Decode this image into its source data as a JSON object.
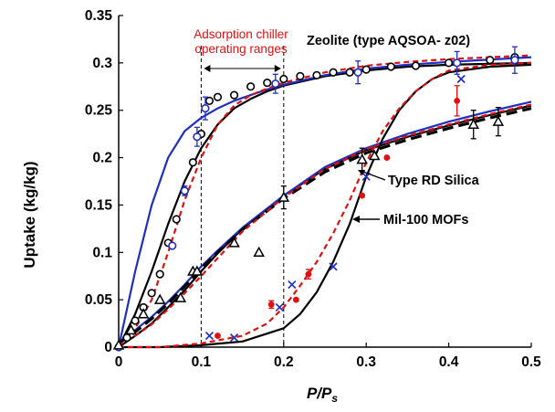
{
  "chart_data": {
    "type": "scatter",
    "xlim": [
      0,
      0.5
    ],
    "ylim": [
      0,
      0.35
    ],
    "xticks": [
      "0",
      "0.1",
      "0.2",
      "0.3",
      "0.4",
      "0.5"
    ],
    "yticks": [
      "0",
      "0.05",
      "0.1",
      "0.15",
      "0.2",
      "0.25",
      "0.3",
      "0.35"
    ],
    "xlabel": {
      "main": "P/P",
      "sub": "s"
    },
    "ylabel": "Uptake (kg/kg)",
    "grid": false,
    "colors": {
      "black": "#000000",
      "blue": "#1f2fbf",
      "red": "#e01010"
    },
    "annotations": {
      "range_title": [
        "Adsorption chiller",
        "operating ranges"
      ],
      "zeolite": "Zeolite (type AQSOA- z02)",
      "silica": "Type RD Silica",
      "mof": "Mil-100 MOFs"
    },
    "operating_range": [
      0.1,
      0.2
    ],
    "series": [
      {
        "group": "zeolite",
        "style": "solid",
        "color": "black",
        "points": [
          [
            0,
            0
          ],
          [
            0.02,
            0.035
          ],
          [
            0.04,
            0.08
          ],
          [
            0.06,
            0.13
          ],
          [
            0.08,
            0.175
          ],
          [
            0.1,
            0.21
          ],
          [
            0.12,
            0.235
          ],
          [
            0.14,
            0.252
          ],
          [
            0.16,
            0.262
          ],
          [
            0.18,
            0.27
          ],
          [
            0.2,
            0.276
          ],
          [
            0.25,
            0.286
          ],
          [
            0.3,
            0.292
          ],
          [
            0.35,
            0.296
          ],
          [
            0.4,
            0.298
          ],
          [
            0.5,
            0.3
          ]
        ]
      },
      {
        "group": "zeolite",
        "style": "solid",
        "color": "blue",
        "points": [
          [
            0,
            0
          ],
          [
            0.02,
            0.08
          ],
          [
            0.04,
            0.15
          ],
          [
            0.06,
            0.2
          ],
          [
            0.08,
            0.228
          ],
          [
            0.1,
            0.242
          ],
          [
            0.12,
            0.252
          ],
          [
            0.14,
            0.26
          ],
          [
            0.16,
            0.266
          ],
          [
            0.18,
            0.272
          ],
          [
            0.2,
            0.277
          ],
          [
            0.25,
            0.287
          ],
          [
            0.3,
            0.294
          ],
          [
            0.35,
            0.298
          ],
          [
            0.4,
            0.301
          ],
          [
            0.5,
            0.306
          ]
        ]
      },
      {
        "group": "zeolite",
        "style": "dashed",
        "color": "red",
        "points": [
          [
            0,
            0
          ],
          [
            0.02,
            0.02
          ],
          [
            0.04,
            0.05
          ],
          [
            0.06,
            0.1
          ],
          [
            0.08,
            0.155
          ],
          [
            0.1,
            0.2
          ],
          [
            0.12,
            0.235
          ],
          [
            0.14,
            0.255
          ],
          [
            0.16,
            0.266
          ],
          [
            0.18,
            0.273
          ],
          [
            0.2,
            0.279
          ],
          [
            0.25,
            0.29
          ],
          [
            0.3,
            0.297
          ],
          [
            0.35,
            0.301
          ],
          [
            0.4,
            0.304
          ],
          [
            0.5,
            0.308
          ]
        ]
      },
      {
        "group": "silica",
        "style": "solid",
        "color": "black",
        "points": [
          [
            0,
            0
          ],
          [
            0.02,
            0.012
          ],
          [
            0.04,
            0.025
          ],
          [
            0.06,
            0.042
          ],
          [
            0.08,
            0.06
          ],
          [
            0.1,
            0.08
          ],
          [
            0.12,
            0.099
          ],
          [
            0.15,
            0.125
          ],
          [
            0.2,
            0.16
          ],
          [
            0.25,
            0.188
          ],
          [
            0.3,
            0.208
          ],
          [
            0.35,
            0.222
          ],
          [
            0.4,
            0.234
          ],
          [
            0.45,
            0.245
          ],
          [
            0.5,
            0.255
          ]
        ]
      },
      {
        "group": "silica",
        "style": "solid",
        "color": "blue",
        "points": [
          [
            0,
            0.005
          ],
          [
            0.02,
            0.018
          ],
          [
            0.04,
            0.032
          ],
          [
            0.06,
            0.048
          ],
          [
            0.08,
            0.066
          ],
          [
            0.1,
            0.085
          ],
          [
            0.12,
            0.102
          ],
          [
            0.15,
            0.126
          ],
          [
            0.2,
            0.16
          ],
          [
            0.25,
            0.19
          ],
          [
            0.3,
            0.21
          ],
          [
            0.35,
            0.225
          ],
          [
            0.4,
            0.238
          ],
          [
            0.45,
            0.249
          ],
          [
            0.5,
            0.259
          ]
        ]
      },
      {
        "group": "silica",
        "style": "dashed",
        "color": "black",
        "width": 3.2,
        "points": [
          [
            0,
            0.004
          ],
          [
            0.02,
            0.016
          ],
          [
            0.04,
            0.03
          ],
          [
            0.06,
            0.046
          ],
          [
            0.08,
            0.064
          ],
          [
            0.1,
            0.083
          ],
          [
            0.12,
            0.1
          ],
          [
            0.15,
            0.124
          ],
          [
            0.2,
            0.157
          ],
          [
            0.25,
            0.185
          ],
          [
            0.3,
            0.205
          ],
          [
            0.35,
            0.219
          ],
          [
            0.4,
            0.231
          ],
          [
            0.45,
            0.242
          ],
          [
            0.5,
            0.252
          ]
        ]
      },
      {
        "group": "silica",
        "style": "dashed",
        "color": "red",
        "points": [
          [
            0,
            0.002
          ],
          [
            0.02,
            0.012
          ],
          [
            0.04,
            0.024
          ],
          [
            0.06,
            0.04
          ],
          [
            0.08,
            0.057
          ],
          [
            0.1,
            0.075
          ],
          [
            0.12,
            0.094
          ],
          [
            0.15,
            0.122
          ],
          [
            0.2,
            0.158
          ],
          [
            0.25,
            0.188
          ],
          [
            0.3,
            0.209
          ],
          [
            0.35,
            0.223
          ],
          [
            0.4,
            0.235
          ],
          [
            0.45,
            0.246
          ],
          [
            0.5,
            0.256
          ]
        ]
      },
      {
        "group": "mof",
        "style": "solid",
        "color": "black",
        "points": [
          [
            0,
            0
          ],
          [
            0.05,
            0
          ],
          [
            0.1,
            0.002
          ],
          [
            0.15,
            0.006
          ],
          [
            0.2,
            0.02
          ],
          [
            0.22,
            0.035
          ],
          [
            0.24,
            0.058
          ],
          [
            0.26,
            0.09
          ],
          [
            0.28,
            0.13
          ],
          [
            0.3,
            0.18
          ],
          [
            0.32,
            0.22
          ],
          [
            0.34,
            0.25
          ],
          [
            0.36,
            0.27
          ],
          [
            0.38,
            0.283
          ],
          [
            0.4,
            0.29
          ],
          [
            0.45,
            0.296
          ],
          [
            0.5,
            0.298
          ]
        ]
      },
      {
        "group": "mof",
        "style": "dashed",
        "color": "red",
        "points": [
          [
            0,
            0
          ],
          [
            0.05,
            0
          ],
          [
            0.1,
            0.004
          ],
          [
            0.15,
            0.012
          ],
          [
            0.18,
            0.025
          ],
          [
            0.2,
            0.042
          ],
          [
            0.22,
            0.065
          ],
          [
            0.24,
            0.09
          ],
          [
            0.26,
            0.12
          ],
          [
            0.28,
            0.155
          ],
          [
            0.3,
            0.195
          ],
          [
            0.32,
            0.228
          ],
          [
            0.34,
            0.252
          ],
          [
            0.36,
            0.27
          ],
          [
            0.38,
            0.283
          ],
          [
            0.4,
            0.292
          ],
          [
            0.45,
            0.298
          ],
          [
            0.5,
            0.3
          ]
        ]
      }
    ],
    "markers": [
      {
        "group": "zeolite",
        "shape": "circle-open",
        "color": "black",
        "points": [
          [
            0.01,
            0.01
          ],
          [
            0.02,
            0.028
          ],
          [
            0.03,
            0.042
          ],
          [
            0.04,
            0.057
          ],
          [
            0.05,
            0.077
          ],
          [
            0.06,
            0.11
          ],
          [
            0.07,
            0.135
          ],
          [
            0.08,
            0.165
          ],
          [
            0.09,
            0.195
          ],
          [
            0.1,
            0.225
          ],
          [
            0.11,
            0.26
          ],
          [
            0.12,
            0.264
          ],
          [
            0.14,
            0.266
          ],
          [
            0.16,
            0.275
          ],
          [
            0.18,
            0.279
          ],
          [
            0.2,
            0.283
          ],
          [
            0.22,
            0.286
          ],
          [
            0.24,
            0.287
          ],
          [
            0.26,
            0.29
          ],
          [
            0.28,
            0.29
          ],
          [
            0.3,
            0.293
          ],
          [
            0.33,
            0.296
          ],
          [
            0.36,
            0.297
          ],
          [
            0.4,
            0.3
          ],
          [
            0.45,
            0.303
          ],
          [
            0.48,
            0.306
          ]
        ]
      },
      {
        "group": "zeolite",
        "shape": "circle-open",
        "color": "blue",
        "errorbar": true,
        "points": [
          [
            0,
            0
          ],
          [
            0.065,
            0.107
          ],
          [
            0.08,
            0.165
          ],
          [
            0.095,
            0.222
          ],
          [
            0.105,
            0.252
          ],
          [
            0.19,
            0.278
          ],
          [
            0.29,
            0.29
          ],
          [
            0.41,
            0.3
          ],
          [
            0.48,
            0.303
          ]
        ],
        "errors": [
          0,
          0,
          0.005,
          0.01,
          0.012,
          0.01,
          0.012,
          0.012,
          0.014
        ]
      },
      {
        "group": "silica",
        "shape": "triangle-open",
        "color": "black",
        "errorbar": true,
        "points": [
          [
            0,
            0.002
          ],
          [
            0.015,
            0.018
          ],
          [
            0.03,
            0.035
          ],
          [
            0.05,
            0.05
          ],
          [
            0.075,
            0.052
          ],
          [
            0.09,
            0.08
          ],
          [
            0.095,
            0.08
          ],
          [
            0.14,
            0.11
          ],
          [
            0.17,
            0.1
          ],
          [
            0.2,
            0.158
          ],
          [
            0.295,
            0.198
          ],
          [
            0.31,
            0.202
          ],
          [
            0.43,
            0.235
          ],
          [
            0.46,
            0.238
          ]
        ],
        "errors": [
          0,
          0,
          0,
          0,
          0,
          0,
          0,
          0,
          0,
          0.012,
          0.012,
          0,
          0.015,
          0.015
        ]
      },
      {
        "group": "mof",
        "shape": "cross",
        "color": "blue",
        "points": [
          [
            0.11,
            0.012
          ],
          [
            0.14,
            0.01
          ],
          [
            0.195,
            0.042
          ],
          [
            0.21,
            0.066
          ],
          [
            0.26,
            0.085
          ],
          [
            0.3,
            0.18
          ],
          [
            0.415,
            0.283
          ]
        ]
      },
      {
        "group": "mof",
        "shape": "dot",
        "color": "red",
        "errorbar": true,
        "points": [
          [
            0.12,
            0.012
          ],
          [
            0.185,
            0.045
          ],
          [
            0.215,
            0.05
          ],
          [
            0.23,
            0.077
          ],
          [
            0.295,
            0.16
          ],
          [
            0.325,
            0.2
          ],
          [
            0.41,
            0.26
          ]
        ],
        "errors": [
          0,
          0.004,
          0,
          0.005,
          0,
          0,
          0.016
        ]
      }
    ]
  }
}
